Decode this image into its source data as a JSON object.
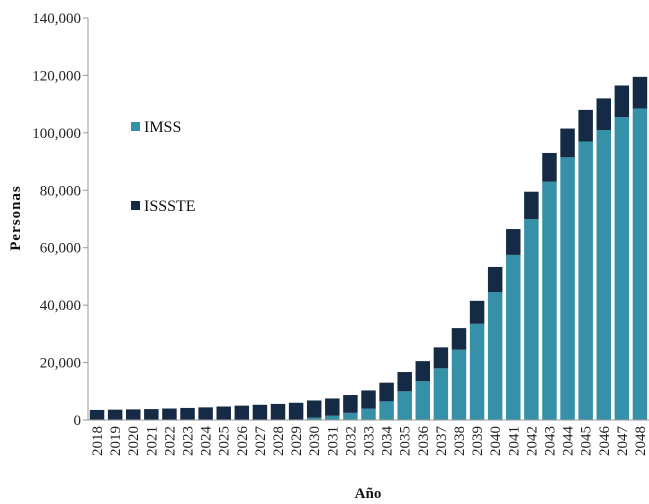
{
  "chart_data": {
    "type": "bar",
    "stacked": true,
    "title": "",
    "xlabel": "Año",
    "ylabel": "Personas",
    "ylim": [
      0,
      140000
    ],
    "yticks": [
      0,
      20000,
      40000,
      60000,
      80000,
      100000,
      120000,
      140000
    ],
    "ytick_labels": [
      "0",
      "20,000",
      "40,000",
      "60,000",
      "80,000",
      "100,000",
      "120,000",
      "140,000"
    ],
    "grid": false,
    "legend_position": "left",
    "categories": [
      "2018",
      "2019",
      "2020",
      "2021",
      "2022",
      "2023",
      "2024",
      "2025",
      "2026",
      "2027",
      "2028",
      "2029",
      "2030",
      "2031",
      "2032",
      "2033",
      "2034",
      "2035",
      "2036",
      "2037",
      "2038",
      "2039",
      "2040",
      "2041",
      "2042",
      "2043",
      "2044",
      "2045",
      "2046",
      "2047",
      "2048"
    ],
    "series": [
      {
        "name": "IMSS",
        "color": "#3590a8",
        "values": [
          0,
          0,
          0,
          0,
          0,
          0,
          0,
          0,
          0,
          0,
          0,
          0,
          800,
          1500,
          2500,
          4000,
          6500,
          10000,
          13500,
          18000,
          24500,
          33500,
          44500,
          57500,
          70000,
          83000,
          91500,
          97000,
          101000,
          105500,
          108500
        ]
      },
      {
        "name": "ISSSTE",
        "color": "#152a44",
        "values": [
          3500,
          3600,
          3700,
          3800,
          4000,
          4200,
          4400,
          4700,
          5000,
          5300,
          5600,
          6000,
          6000,
          6000,
          6200,
          6300,
          6500,
          6700,
          7000,
          7300,
          7500,
          8000,
          8800,
          9000,
          9500,
          10000,
          10000,
          11000,
          11000,
          11000,
          11000
        ]
      }
    ]
  }
}
